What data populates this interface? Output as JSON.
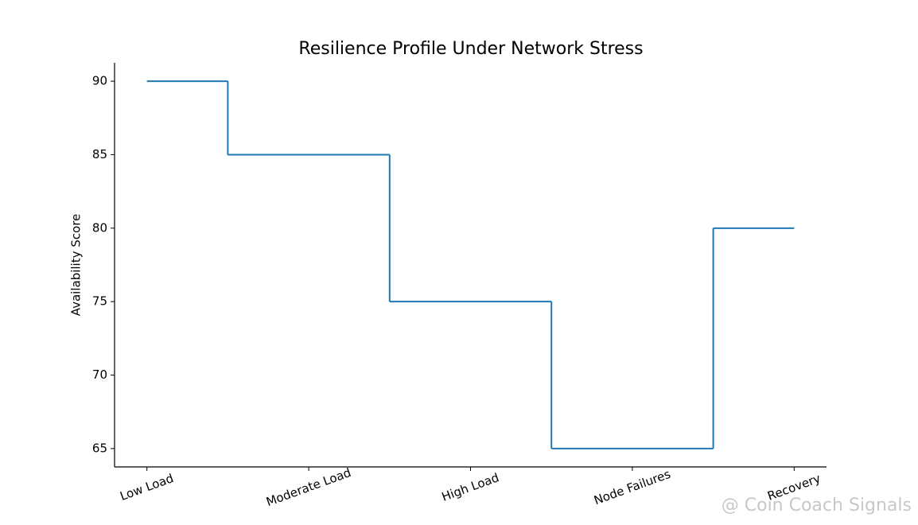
{
  "chart_data": {
    "type": "step",
    "title": "Resilience Profile Under Network Stress",
    "y_label": "Availability Score",
    "categories": [
      "Low Load",
      "Moderate Load",
      "High Load",
      "Node Failures",
      "Recovery"
    ],
    "values": [
      90,
      85,
      75,
      65,
      80
    ],
    "color": "#1f77b4",
    "ylim": [
      63.75,
      91.25
    ],
    "yticks": [
      65,
      70,
      75,
      80,
      85,
      90
    ],
    "grid": false,
    "watermark": "@ Coin Coach Signals"
  }
}
